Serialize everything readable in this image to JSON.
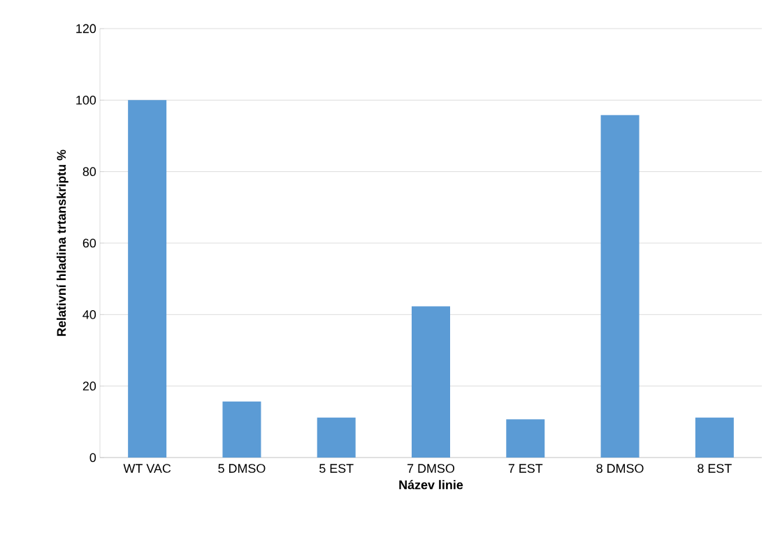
{
  "chart_data": {
    "type": "bar",
    "xlabel": "Název linie",
    "ylabel": "Relativní hladina trtanskriptu %",
    "categories": [
      "WT VAC",
      "5 DMSO",
      "5 EST",
      "7 DMSO",
      "7 EST",
      "8 DMSO",
      "8 EST"
    ],
    "values": [
      100,
      15.7,
      11.2,
      42.3,
      10.7,
      95.8,
      11.2
    ],
    "color": "#5b9bd5",
    "ylim": [
      0,
      120
    ],
    "yticks": [
      0,
      20,
      40,
      60,
      80,
      100,
      120
    ],
    "grid": "y"
  }
}
